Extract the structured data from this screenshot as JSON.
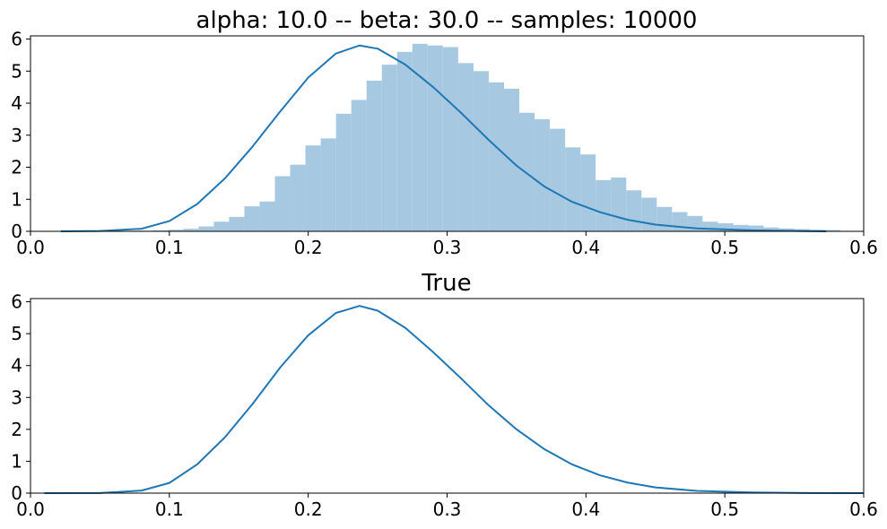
{
  "chart_data": [
    {
      "type": "histogram",
      "title": "alpha: 10.0 -- beta: 30.0 -- samples: 10000",
      "xlabel": "",
      "ylabel": "",
      "xlim": [
        0.0,
        0.6
      ],
      "ylim": [
        0,
        6.1
      ],
      "xticks": [
        "0.0",
        "0.1",
        "0.2",
        "0.3",
        "0.4",
        "0.5",
        "0.6"
      ],
      "yticks": [
        "0",
        "1",
        "2",
        "3",
        "4",
        "5",
        "6"
      ],
      "grid": false,
      "colors": {
        "bars": "#a6c8e1",
        "line": "#1f77b4"
      },
      "bins": {
        "start": 0.022,
        "width": 0.011,
        "values": [
          0.01,
          0.01,
          0.01,
          0.01,
          0.01,
          0.02,
          0.03,
          0.05,
          0.08,
          0.15,
          0.3,
          0.45,
          0.78,
          0.93,
          1.72,
          2.08,
          2.68,
          2.9,
          3.67,
          4.1,
          4.7,
          5.2,
          5.6,
          5.85,
          5.8,
          5.75,
          5.25,
          5.0,
          4.65,
          4.45,
          3.7,
          3.5,
          3.2,
          2.62,
          2.4,
          1.6,
          1.68,
          1.28,
          1.05,
          0.76,
          0.6,
          0.48,
          0.3,
          0.25,
          0.2,
          0.18,
          0.12,
          0.09,
          0.07,
          0.05,
          0.04
        ]
      },
      "kde": {
        "x": [
          0.022,
          0.05,
          0.08,
          0.1,
          0.12,
          0.14,
          0.16,
          0.18,
          0.2,
          0.22,
          0.237,
          0.25,
          0.27,
          0.29,
          0.31,
          0.33,
          0.35,
          0.37,
          0.39,
          0.41,
          0.43,
          0.45,
          0.48,
          0.52,
          0.573
        ],
        "y": [
          0.0,
          0.01,
          0.08,
          0.32,
          0.85,
          1.65,
          2.65,
          3.75,
          4.8,
          5.55,
          5.8,
          5.7,
          5.2,
          4.5,
          3.7,
          2.85,
          2.05,
          1.4,
          0.92,
          0.6,
          0.36,
          0.21,
          0.09,
          0.03,
          0.0
        ]
      }
    },
    {
      "type": "line",
      "title": "True",
      "xlabel": "",
      "ylabel": "",
      "xlim": [
        0.0,
        0.6
      ],
      "ylim": [
        0,
        6.1
      ],
      "xticks": [
        "0.0",
        "0.1",
        "0.2",
        "0.3",
        "0.4",
        "0.5",
        "0.6"
      ],
      "yticks": [
        "0",
        "1",
        "2",
        "3",
        "4",
        "5",
        "6"
      ],
      "grid": false,
      "colors": {
        "line": "#1f77b4"
      },
      "series": [
        {
          "x": [
            0.01,
            0.05,
            0.08,
            0.1,
            0.12,
            0.14,
            0.16,
            0.18,
            0.2,
            0.22,
            0.237,
            0.25,
            0.27,
            0.29,
            0.31,
            0.33,
            0.35,
            0.37,
            0.39,
            0.41,
            0.43,
            0.45,
            0.48,
            0.52,
            0.56,
            0.6
          ],
          "y": [
            0.0,
            0.003,
            0.08,
            0.32,
            0.9,
            1.75,
            2.8,
            3.95,
            4.95,
            5.65,
            5.87,
            5.72,
            5.18,
            4.42,
            3.6,
            2.75,
            2.0,
            1.38,
            0.9,
            0.56,
            0.33,
            0.18,
            0.07,
            0.02,
            0.004,
            0.0
          ]
        }
      ]
    }
  ]
}
